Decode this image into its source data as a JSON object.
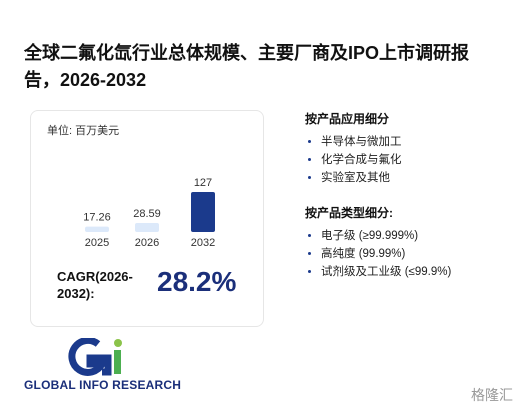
{
  "title": "全球二氟化氙行业总体规模、主要厂商及IPO上市调研报告，2026-2032",
  "chart_data": {
    "type": "bar",
    "unit_label": "单位: 百万美元",
    "categories": [
      "2025",
      "2026",
      "2032"
    ],
    "values": [
      17.26,
      28.59,
      127
    ],
    "colors": [
      "#dce9fa",
      "#dce9fa",
      "#1b3a8c"
    ]
  },
  "cagr": {
    "label": "CAGR(2026-2032):",
    "value": "28.2%"
  },
  "application_segments": {
    "title": "按产品应用细分",
    "items": [
      "半导体与微加工",
      "化学合成与氟化",
      "实验室及其他"
    ]
  },
  "type_segments": {
    "title": "按产品类型细分:",
    "items": [
      "电子级 (≥99.999%)",
      "高纯度 (99.99%)",
      "试剂级及工业级 (≤99.9%)"
    ]
  },
  "logo_text": "GLOBAL INFO RESEARCH",
  "source_mark": "格隆汇"
}
